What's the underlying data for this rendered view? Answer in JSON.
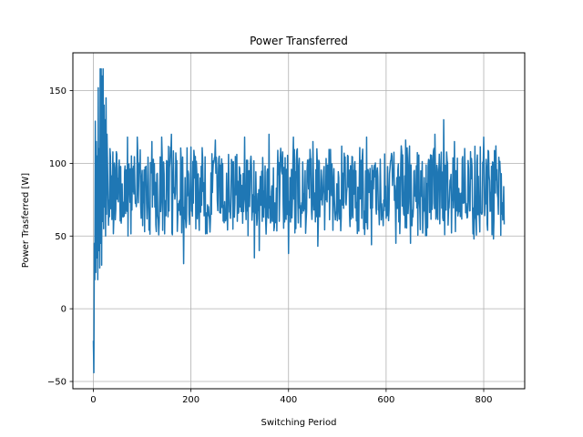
{
  "chart_data": {
    "type": "line",
    "title": "Power Transferred",
    "xlabel": "Switching Period",
    "ylabel": "Power Trasferred [W]",
    "xlim": [
      -42,
      884
    ],
    "ylim": [
      -55,
      176
    ],
    "xticks": [
      0,
      200,
      400,
      600,
      800
    ],
    "yticks": [
      -50,
      0,
      50,
      100,
      150
    ],
    "grid": true,
    "line_color": "#1f77b4",
    "series": [
      {
        "name": "",
        "seed": 7,
        "x_range": [
          0,
          842
        ],
        "anchors": [
          [
            0,
            -22
          ],
          [
            1,
            -44
          ],
          [
            2,
            45
          ],
          [
            3,
            20
          ],
          [
            4,
            129
          ],
          [
            5,
            25
          ],
          [
            6,
            115
          ],
          [
            7,
            35
          ],
          [
            8,
            105
          ],
          [
            9,
            20
          ],
          [
            10,
            152
          ],
          [
            11,
            40
          ],
          [
            12,
            110
          ],
          [
            13,
            28
          ],
          [
            14,
            165
          ],
          [
            15,
            45
          ],
          [
            16,
            165
          ],
          [
            17,
            30
          ],
          [
            18,
            160
          ],
          [
            19,
            60
          ],
          [
            20,
            165
          ],
          [
            21,
            55
          ],
          [
            22,
            140
          ],
          [
            23,
            70
          ],
          [
            24,
            130
          ],
          [
            25,
            50
          ],
          [
            26,
            145
          ],
          [
            27,
            65
          ],
          [
            28,
            120
          ],
          [
            30,
            80
          ]
        ],
        "band": [
          60,
          105
        ],
        "dips": [
          [
            70,
            40
          ],
          [
            90,
            32
          ],
          [
            160,
            32
          ],
          [
            185,
            31
          ],
          [
            330,
            35
          ],
          [
            340,
            40
          ],
          [
            400,
            38
          ],
          [
            460,
            43
          ],
          [
            570,
            44
          ],
          [
            620,
            45
          ],
          [
            650,
            45
          ],
          [
            780,
            48
          ],
          [
            820,
            48
          ],
          [
            842,
            58
          ]
        ],
        "peaks": [
          [
            70,
            118
          ],
          [
            90,
            118
          ],
          [
            120,
            115
          ],
          [
            140,
            118
          ],
          [
            160,
            120
          ],
          [
            250,
            116
          ],
          [
            310,
            118
          ],
          [
            360,
            120
          ],
          [
            410,
            118
          ],
          [
            450,
            115
          ],
          [
            560,
            118
          ],
          [
            640,
            116
          ],
          [
            700,
            120
          ],
          [
            718,
            130
          ],
          [
            740,
            115
          ],
          [
            800,
            118
          ],
          [
            825,
            112
          ]
        ]
      }
    ]
  }
}
